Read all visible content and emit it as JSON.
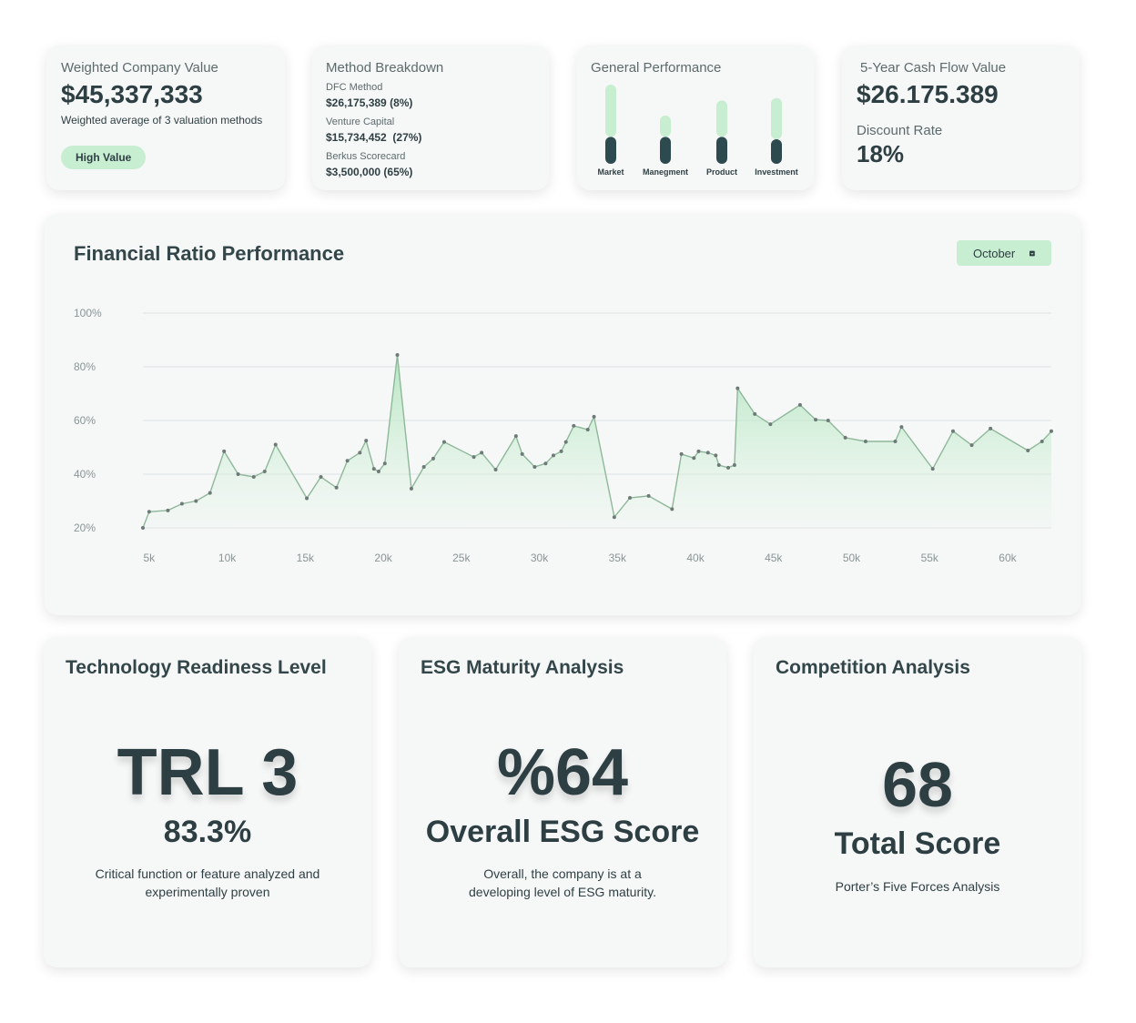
{
  "cards": {
    "weighted": {
      "title": "Weighted Company Value",
      "value": "$45,337,333",
      "caption": "Weighted average of 3 valuation methods",
      "badge": "High Value"
    },
    "methods": {
      "title": "Method Breakdown",
      "items": [
        {
          "label": "DFC Method",
          "value": "$26,175,389 (8%)"
        },
        {
          "label": "Venture Capital",
          "value": "$15,734,452  (27%)"
        },
        {
          "label": "Berkus Scorecard",
          "value": "$3,500,000 (65%)"
        }
      ]
    },
    "cash_flow": {
      "title": "5-Year Cash Flow Value",
      "value": "$26.175.389",
      "rate_label": "Discount Rate",
      "rate": "18%"
    }
  },
  "filter": "October",
  "panels": [
    {
      "title": "Technology Readiness Level",
      "value": "TRL 3",
      "sub": "83.3%",
      "text": "Critical function or feature analyzed and experimentally proven"
    },
    {
      "title": "ESG Maturity Analysis",
      "value": "%64",
      "sub": "Overall ESG Score",
      "text": "Overall, the company is at a developing level of ESG maturity."
    },
    {
      "title": "Competition Analysis",
      "value": "68",
      "sub": "Total Score",
      "text": "Porter’s Five Forces Analysis"
    }
  ],
  "chart_data": [
    {
      "type": "bar",
      "stacked": true,
      "title": "General Performance",
      "categories": [
        "Market",
        "Manegment",
        "Product",
        "Investment"
      ],
      "ylim": [
        0,
        100
      ],
      "series": [
        {
          "color": "#2d4a4f",
          "values": [
            34,
            34,
            34,
            31
          ]
        },
        {
          "color": "#c8eed2",
          "values": [
            66,
            27,
            46,
            52
          ]
        }
      ]
    },
    {
      "type": "line",
      "title": "Financial Ratio Performance",
      "color": "#8fb89a",
      "grid": true,
      "xlim": [
        4600,
        62800
      ],
      "ylim": [
        20,
        100
      ],
      "xticks": [
        {
          "value": 5000,
          "label": "5k"
        },
        {
          "value": 10000,
          "label": "10k"
        },
        {
          "value": 15000,
          "label": "15k"
        },
        {
          "value": 20000,
          "label": "20k"
        },
        {
          "value": 25000,
          "label": "25k"
        },
        {
          "value": 30000,
          "label": "30k"
        },
        {
          "value": 35000,
          "label": "35k"
        },
        {
          "value": 40000,
          "label": "40k"
        },
        {
          "value": 45000,
          "label": "45k"
        },
        {
          "value": 50000,
          "label": "50k"
        },
        {
          "value": 55000,
          "label": "55k"
        },
        {
          "value": 60000,
          "label": "60k"
        }
      ],
      "yticks": [
        {
          "value": 20,
          "label": "20%"
        },
        {
          "value": 40,
          "label": "40%"
        },
        {
          "value": 60,
          "label": "60%"
        },
        {
          "value": 80,
          "label": "80%"
        },
        {
          "value": 100,
          "label": "100%"
        }
      ],
      "x": [
        4600,
        5000,
        6200,
        7100,
        8000,
        8900,
        9800,
        10700,
        11700,
        12400,
        13100,
        15100,
        16000,
        17000,
        17700,
        18500,
        18900,
        19400,
        19700,
        20100,
        20900,
        21800,
        22600,
        23200,
        23900,
        25800,
        26300,
        27200,
        28500,
        28900,
        29700,
        30400,
        30900,
        31400,
        31700,
        32200,
        33100,
        33500,
        34800,
        35800,
        37000,
        38500,
        39100,
        39900,
        40200,
        40800,
        41300,
        41500,
        42100,
        42500,
        42700,
        43800,
        44800,
        46700,
        47700,
        48500,
        49600,
        50900,
        52800,
        53200,
        55200,
        56500,
        57700,
        58900,
        61300,
        62200,
        62800
      ],
      "values": [
        20,
        26,
        26.5,
        29,
        30,
        33,
        48.5,
        40,
        39,
        41,
        51,
        31,
        39,
        35,
        45,
        48,
        52.5,
        42,
        41,
        44,
        84.4,
        34.6,
        42.7,
        45.8,
        52,
        46.4,
        48,
        41.7,
        54.2,
        47.5,
        42.7,
        44,
        47,
        48.5,
        52,
        58,
        56.6,
        61.4,
        24,
        31.2,
        31.9,
        27,
        47.5,
        46,
        48.5,
        48,
        47,
        43.4,
        42.4,
        43.4,
        72,
        62.4,
        58.6,
        65.8,
        60.3,
        60,
        53.6,
        52.2,
        52.2,
        57.6,
        42,
        56,
        50.8,
        57,
        48.8,
        52.2,
        56
      ]
    }
  ]
}
